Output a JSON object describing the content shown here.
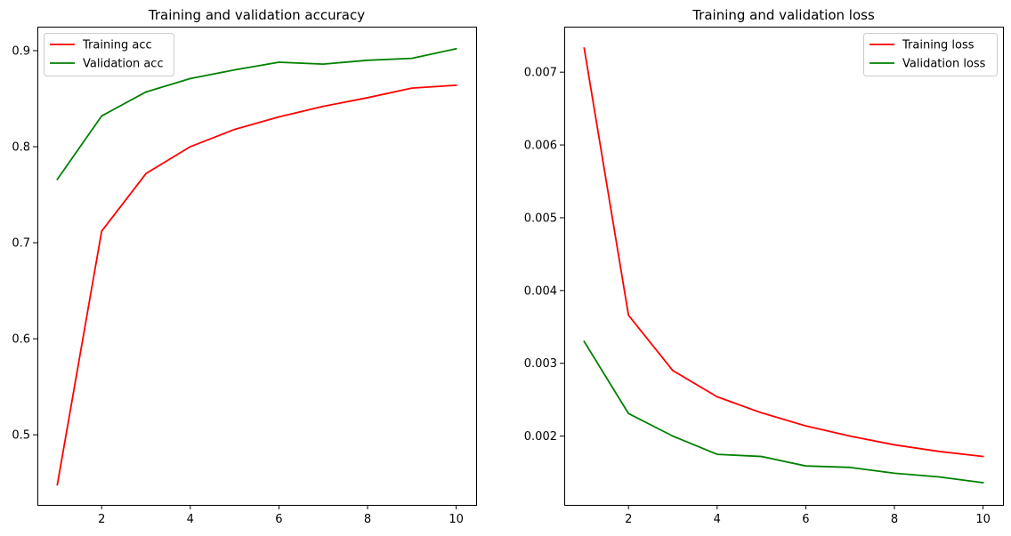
{
  "chart_data": [
    {
      "type": "line",
      "title": "Training and validation accuracy",
      "xlabel": "",
      "ylabel": "",
      "x": [
        1,
        2,
        3,
        4,
        5,
        6,
        7,
        8,
        9,
        10
      ],
      "xlim": [
        0.55,
        10.45
      ],
      "ylim": [
        0.427,
        0.925
      ],
      "xticks": [
        2,
        4,
        6,
        8,
        10
      ],
      "xtick_labels": [
        "2",
        "4",
        "6",
        "8",
        "10"
      ],
      "yticks": [
        0.5,
        0.6,
        0.7,
        0.8,
        0.9
      ],
      "ytick_labels": [
        "0.5",
        "0.6",
        "0.7",
        "0.8",
        "0.9"
      ],
      "grid": false,
      "legend_position": "top-left",
      "series": [
        {
          "name": "Training acc",
          "color": "#ff0000",
          "values": [
            0.448,
            0.712,
            0.772,
            0.8,
            0.818,
            0.831,
            0.842,
            0.851,
            0.861,
            0.864
          ]
        },
        {
          "name": "Validation acc",
          "color": "#008000",
          "values": [
            0.766,
            0.832,
            0.857,
            0.871,
            0.88,
            0.888,
            0.886,
            0.89,
            0.892,
            0.902
          ]
        }
      ]
    },
    {
      "type": "line",
      "title": "Training and validation loss",
      "xlabel": "",
      "ylabel": "",
      "x": [
        1,
        2,
        3,
        4,
        5,
        6,
        7,
        8,
        9,
        10
      ],
      "xlim": [
        0.55,
        10.45
      ],
      "ylim": [
        0.001055,
        0.007625
      ],
      "xticks": [
        2,
        4,
        6,
        8,
        10
      ],
      "xtick_labels": [
        "2",
        "4",
        "6",
        "8",
        "10"
      ],
      "yticks": [
        0.002,
        0.003,
        0.004,
        0.005,
        0.006,
        0.007
      ],
      "ytick_labels": [
        "0.002",
        "0.003",
        "0.004",
        "0.005",
        "0.006",
        "0.007"
      ],
      "grid": false,
      "legend_position": "top-right",
      "series": [
        {
          "name": "Training loss",
          "color": "#ff0000",
          "values": [
            0.00733,
            0.00366,
            0.0029,
            0.00254,
            0.00232,
            0.00214,
            0.002,
            0.00188,
            0.00179,
            0.00172
          ]
        },
        {
          "name": "Validation loss",
          "color": "#008000",
          "values": [
            0.0033,
            0.00231,
            0.002,
            0.00175,
            0.00172,
            0.00159,
            0.00157,
            0.00149,
            0.00144,
            0.00136
          ]
        }
      ]
    }
  ]
}
